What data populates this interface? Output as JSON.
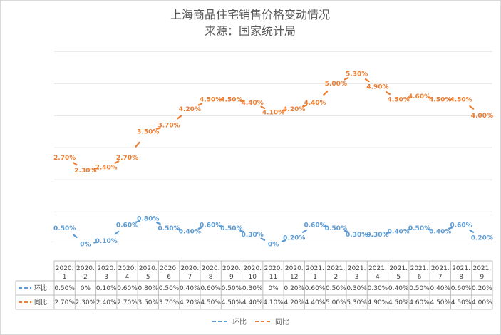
{
  "chart_data": {
    "type": "line",
    "title": "上海商品住宅销售价格变动情况",
    "subtitle": "来源：国家统计局",
    "categories": [
      [
        "2020.",
        "1"
      ],
      [
        "2020.",
        "2"
      ],
      [
        "2020.",
        "3"
      ],
      [
        "2020.",
        "4"
      ],
      [
        "2020.",
        "5"
      ],
      [
        "2020.",
        "6"
      ],
      [
        "2020.",
        "7"
      ],
      [
        "2020.",
        "8"
      ],
      [
        "2020.",
        "9"
      ],
      [
        "2020.",
        "10"
      ],
      [
        "2020.",
        "11"
      ],
      [
        "2020.",
        "12"
      ],
      [
        "2021.",
        "1"
      ],
      [
        "2021.",
        "2"
      ],
      [
        "2021.",
        "3"
      ],
      [
        "2021.",
        "4"
      ],
      [
        "2021.",
        "5"
      ],
      [
        "2021.",
        "6"
      ],
      [
        "2021.",
        "7"
      ],
      [
        "2021.",
        "8"
      ],
      [
        "2021.",
        "9"
      ]
    ],
    "series": [
      {
        "name": "环比",
        "color": "#5b9bd5",
        "values": [
          0.5,
          0,
          0.1,
          0.6,
          0.8,
          0.5,
          0.4,
          0.6,
          0.5,
          0.3,
          0,
          0.2,
          0.6,
          0.5,
          0.3,
          0.3,
          0.4,
          0.5,
          0.4,
          0.6,
          0.2
        ],
        "labels": [
          "0.50%",
          "0%",
          "0.10%",
          "0.60%",
          "0.80%",
          "0.50%",
          "0.40%",
          "0.60%",
          "0.50%",
          "0.30%",
          "0%",
          "0.20%",
          "0.60%",
          "0.50%",
          "0.30%",
          "0.30%",
          "0.40%",
          "0.50%",
          "0.40%",
          "0.60%",
          "0.20%"
        ]
      },
      {
        "name": "同比",
        "color": "#ed7d31",
        "values": [
          2.7,
          2.3,
          2.4,
          2.7,
          3.5,
          3.7,
          4.2,
          4.5,
          4.5,
          4.4,
          4.1,
          4.2,
          4.4,
          5.0,
          5.3,
          4.9,
          4.5,
          4.6,
          4.5,
          4.5,
          4.0
        ],
        "labels": [
          "2.70%",
          "2.30%",
          "2.40%",
          "2.70%",
          "3.50%",
          "3.70%",
          "4.20%",
          "4.50%",
          "4.50%",
          "4.40%",
          "4.10%",
          "4.20%",
          "4.40%",
          "5.00%",
          "5.30%",
          "4.90%",
          "4.50%",
          "4.60%",
          "4.50%",
          "4.50%",
          "4.00%"
        ]
      }
    ],
    "ylim": [
      -0.5,
      6
    ],
    "grid": true,
    "legend": "bottom",
    "data_table": true
  }
}
